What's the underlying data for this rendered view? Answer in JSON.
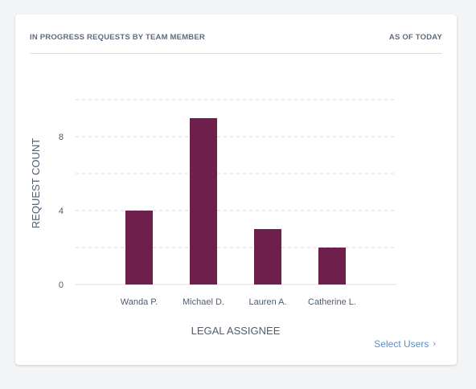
{
  "header": {
    "title": "IN PROGRESS REQUESTS BY TEAM MEMBER",
    "as_of": "AS OF TODAY"
  },
  "footer": {
    "select_users_label": "Select Users",
    "chevron_icon": "chevron-right-icon"
  },
  "colors": {
    "bar": "#6f1f4c",
    "grid": "#d9dde3",
    "axis_text": "#4f5d70",
    "link": "#5b8ec6"
  },
  "chart_data": {
    "type": "bar",
    "categories": [
      "Wanda P.",
      "Michael D.",
      "Lauren A.",
      "Catherine L."
    ],
    "values": [
      4,
      9,
      3,
      2
    ],
    "title": "IN PROGRESS REQUESTS BY TEAM MEMBER",
    "xlabel": "LEGAL ASSIGNEE",
    "ylabel": "REQUEST COUNT",
    "ylim": [
      0,
      10
    ],
    "yticks": [
      0,
      4,
      8
    ],
    "grid": true,
    "legend": "none"
  }
}
